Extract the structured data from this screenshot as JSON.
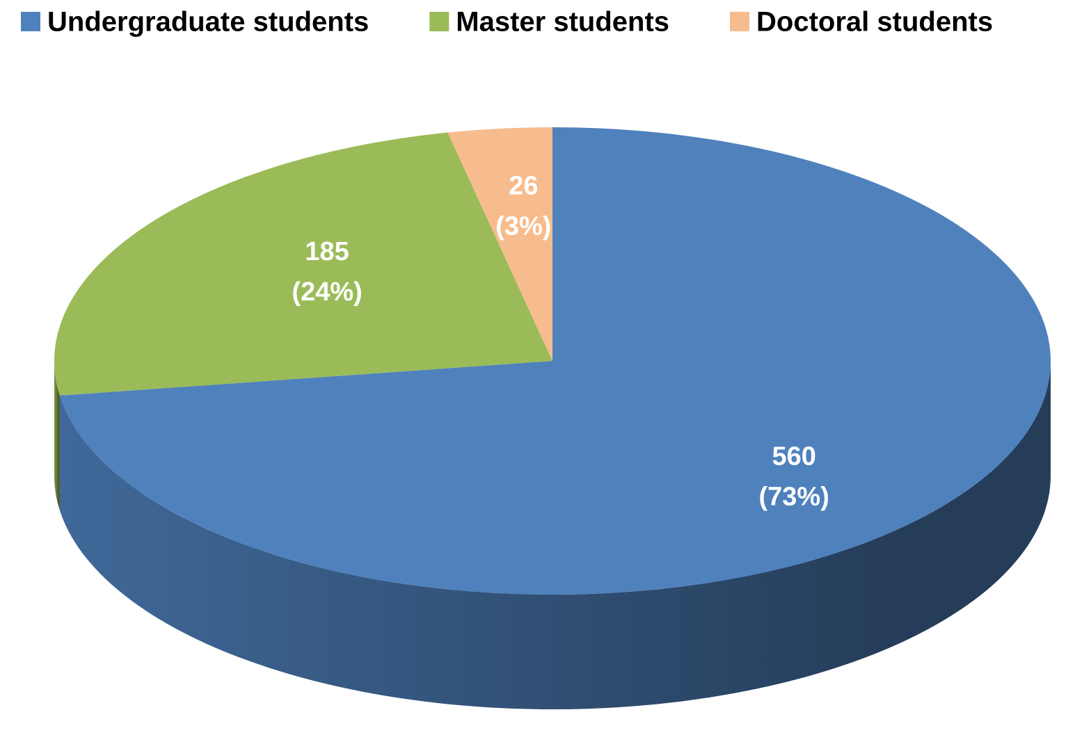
{
  "chart_data": {
    "type": "pie",
    "style": "3d",
    "categories": [
      "Undergraduate students",
      "Master students",
      "Doctoral students"
    ],
    "values": [
      560,
      185,
      26
    ],
    "percent_labels": [
      "(73%)",
      "(24%)",
      "(3%)"
    ],
    "colors": [
      "#4f81bd",
      "#9bbb59",
      "#f7bc8d"
    ],
    "legend": "top"
  }
}
